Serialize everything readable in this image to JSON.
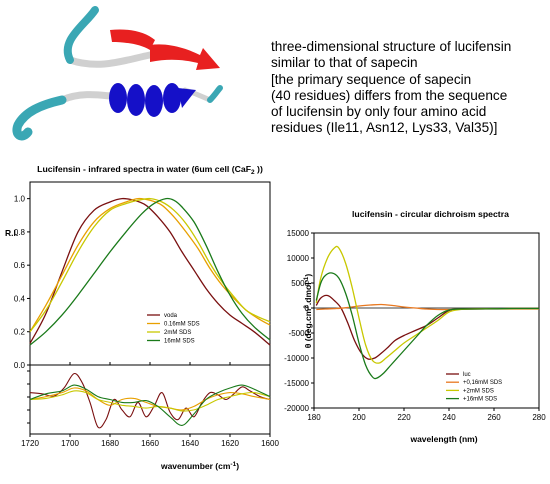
{
  "description": {
    "lines": [
      "three-dimensional structure of lucifensin",
      "similar to that of sapecin",
      "[the primary sequence of sapecin",
      "(40 residues) differs from the sequence",
      "of lucifensin by only four amino acid",
      "residues (Ile11, Asn12, Lys33, Val35)]"
    ]
  },
  "colors": {
    "helix": "#1510c8",
    "strand": "#e82020",
    "loop": "#3aa7b4",
    "coil": "#d0d0d0"
  },
  "chart_data": [
    {
      "type": "line",
      "title_main": "Lucifensin - infrared spectra in water (6um cell (CaF",
      "title_sub": "2",
      "title_end": " ))",
      "xlabel_main": "wavenumber (cm",
      "xlabel_sup": "-1",
      "xlabel_end": ")",
      "ylabel": "R.I.",
      "xlim": [
        1720,
        1600
      ],
      "ylim": [
        0.0,
        1.1
      ],
      "xticks": [
        "1720",
        "1700",
        "1680",
        "1660",
        "1640",
        "1620",
        "1600"
      ],
      "xtick_values": [
        1720,
        1700,
        1680,
        1660,
        1640,
        1620,
        1600
      ],
      "yticks": [
        "0.0",
        "0.2",
        "0.4",
        "0.6",
        "0.8",
        "1.0"
      ],
      "ytick_values": [
        0,
        0.2,
        0.4,
        0.6,
        0.8,
        1.0
      ],
      "legend_position": "lower-right",
      "series": [
        {
          "name": "voda",
          "color": "#7a1010",
          "x": [
            1720,
            1712,
            1704,
            1696,
            1688,
            1680,
            1674,
            1668,
            1662,
            1656,
            1650,
            1644,
            1638,
            1632,
            1626,
            1620,
            1614,
            1608,
            1600
          ],
          "y": [
            0.13,
            0.31,
            0.56,
            0.8,
            0.93,
            0.98,
            1.0,
            0.99,
            0.96,
            0.89,
            0.8,
            0.68,
            0.57,
            0.46,
            0.37,
            0.3,
            0.25,
            0.2,
            0.12
          ]
        },
        {
          "name": "0.16mM SDS",
          "color": "#e8a000",
          "x": [
            1720,
            1712,
            1704,
            1696,
            1688,
            1680,
            1672,
            1666,
            1660,
            1654,
            1648,
            1642,
            1636,
            1630,
            1624,
            1618,
            1612,
            1606,
            1600
          ],
          "y": [
            0.2,
            0.36,
            0.54,
            0.72,
            0.86,
            0.94,
            0.98,
            1.0,
            0.99,
            0.96,
            0.89,
            0.8,
            0.7,
            0.58,
            0.48,
            0.4,
            0.33,
            0.28,
            0.24
          ]
        },
        {
          "name": "2mM SDS",
          "color": "#c8c800",
          "x": [
            1720,
            1712,
            1704,
            1696,
            1688,
            1680,
            1672,
            1666,
            1660,
            1654,
            1648,
            1642,
            1636,
            1630,
            1624,
            1618,
            1612,
            1606,
            1600
          ],
          "y": [
            0.2,
            0.33,
            0.5,
            0.68,
            0.83,
            0.93,
            0.97,
            0.99,
            1.0,
            0.98,
            0.93,
            0.85,
            0.74,
            0.61,
            0.5,
            0.41,
            0.33,
            0.29,
            0.26
          ]
        },
        {
          "name": "16mM SDS",
          "color": "#1a7a1a",
          "x": [
            1720,
            1712,
            1704,
            1696,
            1688,
            1680,
            1672,
            1664,
            1658,
            1652,
            1648,
            1644,
            1638,
            1632,
            1626,
            1620,
            1614,
            1608,
            1600
          ],
          "y": [
            0.12,
            0.2,
            0.3,
            0.42,
            0.55,
            0.68,
            0.8,
            0.91,
            0.97,
            1.0,
            0.99,
            0.95,
            0.86,
            0.72,
            0.56,
            0.42,
            0.31,
            0.23,
            0.15
          ]
        }
      ],
      "difference_panel": {
        "ylim": [
          -0.06,
          0.06
        ],
        "series": [
          {
            "name": "voda",
            "color": "#7a1010",
            "x": [
              1720,
              1714,
              1708,
              1703,
              1698,
              1694,
              1690,
              1686,
              1682,
              1678,
              1674,
              1670,
              1666,
              1662,
              1658,
              1654,
              1650,
              1646,
              1642,
              1638,
              1634,
              1630,
              1626,
              1622,
              1618,
              1614,
              1610,
              1605,
              1600
            ],
            "y": [
              0.012,
              0.01,
              0.006,
              0.02,
              0.045,
              0.03,
              -0.005,
              -0.048,
              -0.035,
              0.0,
              -0.018,
              -0.03,
              -0.005,
              -0.03,
              -0.012,
              0.012,
              -0.022,
              -0.035,
              -0.015,
              -0.03,
              -0.005,
              0.012,
              0.008,
              0.0,
              0.01,
              0.022,
              0.015,
              0.005,
              0.0
            ]
          },
          {
            "name": "0.16mM SDS",
            "color": "#e8a000",
            "x": [
              1720,
              1712,
              1704,
              1698,
              1692,
              1686,
              1680,
              1674,
              1668,
              1662,
              1656,
              1650,
              1644,
              1638,
              1632,
              1626,
              1620,
              1614,
              1608,
              1600
            ],
            "y": [
              0.0,
              0.005,
              0.012,
              0.02,
              0.015,
              0.0,
              -0.01,
              0.0,
              0.002,
              -0.005,
              -0.012,
              -0.015,
              -0.018,
              -0.012,
              0.0,
              0.008,
              0.012,
              0.01,
              0.005,
              0.0
            ]
          },
          {
            "name": "2mM SDS",
            "color": "#c8c800",
            "x": [
              1720,
              1712,
              1704,
              1698,
              1692,
              1686,
              1680,
              1674,
              1668,
              1662,
              1656,
              1650,
              1644,
              1638,
              1632,
              1626,
              1620,
              1614,
              1608,
              1600
            ],
            "y": [
              0.0,
              0.002,
              0.008,
              0.015,
              0.012,
              0.0,
              -0.005,
              -0.01,
              -0.012,
              -0.015,
              -0.012,
              -0.015,
              -0.02,
              -0.018,
              -0.01,
              0.0,
              0.005,
              0.01,
              0.012,
              0.005
            ]
          },
          {
            "name": "16mM SDS",
            "color": "#1a7a1a",
            "x": [
              1720,
              1712,
              1704,
              1698,
              1692,
              1686,
              1680,
              1674,
              1668,
              1662,
              1656,
              1650,
              1644,
              1638,
              1632,
              1626,
              1620,
              1614,
              1608,
              1600
            ],
            "y": [
              0.0,
              0.01,
              0.015,
              0.025,
              0.018,
              0.005,
              0.0,
              -0.005,
              -0.005,
              -0.002,
              -0.012,
              -0.03,
              -0.045,
              -0.025,
              0.0,
              0.012,
              0.02,
              0.025,
              0.018,
              0.005
            ]
          }
        ]
      }
    },
    {
      "type": "line",
      "title": "lucifensin - circular dichroism spectra",
      "xlabel": "wavelength (nm)",
      "ylabel_main": "θ (deg.cm",
      "ylabel_sup1": "2",
      "ylabel_mid": ".dmol",
      "ylabel_sup2": "-1",
      "ylabel_end": ")",
      "xlim": [
        180,
        280
      ],
      "ylim": [
        -20000,
        15000
      ],
      "xticks": [
        "180",
        "200",
        "220",
        "240",
        "260",
        "280"
      ],
      "xtick_values": [
        180,
        200,
        220,
        240,
        260,
        280
      ],
      "yticks": [
        "15000",
        "10000",
        "5000",
        "0",
        "-5000",
        "-10000",
        "-15000",
        "-20000"
      ],
      "ytick_values": [
        15000,
        10000,
        5000,
        0,
        -5000,
        -10000,
        -15000,
        -20000
      ],
      "legend_position": "lower-right",
      "series": [
        {
          "name": "luc",
          "color": "#7a1010",
          "x": [
            181,
            183,
            186,
            189,
            192,
            195,
            198,
            201,
            204,
            207,
            210,
            213,
            216,
            220,
            225,
            230,
            235,
            240,
            245,
            250,
            260,
            270,
            280
          ],
          "y": [
            500,
            2000,
            2500,
            1500,
            0,
            -3000,
            -6500,
            -9000,
            -10200,
            -10000,
            -9000,
            -7800,
            -6500,
            -5500,
            -4500,
            -3500,
            -2000,
            -500,
            -200,
            -200,
            -150,
            -100,
            -100
          ]
        },
        {
          "name": "+0,16mM SDS",
          "color": "#e87820",
          "x": [
            181,
            185,
            190,
            195,
            200,
            205,
            210,
            215,
            220,
            225,
            230,
            235,
            240,
            250,
            260,
            270,
            280
          ],
          "y": [
            -300,
            -200,
            -100,
            100,
            400,
            600,
            700,
            500,
            200,
            0,
            -200,
            -300,
            -300,
            -200,
            -200,
            -200,
            -200
          ]
        },
        {
          "name": "+2mM SDS",
          "color": "#c8c800",
          "x": [
            181,
            183,
            186,
            189,
            191,
            194,
            197,
            200,
            203,
            206,
            209,
            212,
            216,
            220,
            225,
            230,
            235,
            240,
            245,
            250,
            260,
            270,
            280
          ],
          "y": [
            1000,
            6000,
            10000,
            12000,
            12000,
            9000,
            4000,
            -2000,
            -7500,
            -10500,
            -11000,
            -10000,
            -8500,
            -7000,
            -5500,
            -4000,
            -2500,
            -800,
            -300,
            -200,
            -150,
            -100,
            -100
          ]
        },
        {
          "name": "+16mM SDS",
          "color": "#1a7a1a",
          "x": [
            181,
            183,
            185,
            188,
            191,
            194,
            197,
            200,
            203,
            206,
            208,
            211,
            214,
            218,
            222,
            226,
            230,
            235,
            240,
            245,
            250,
            260,
            270,
            280
          ],
          "y": [
            1500,
            5000,
            6500,
            7000,
            6000,
            3000,
            -1500,
            -7000,
            -11500,
            -13800,
            -14000,
            -13000,
            -11500,
            -9500,
            -7500,
            -5500,
            -3500,
            -1500,
            -400,
            -200,
            -200,
            -150,
            -100,
            -100
          ]
        }
      ]
    }
  ]
}
